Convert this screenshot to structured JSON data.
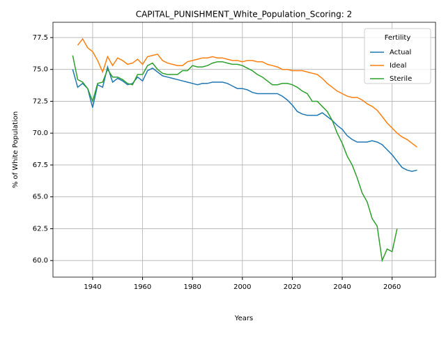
{
  "chart_data": {
    "type": "line",
    "title": "CAPITAL_PUNISHMENT_White_Population_Scoring: 2",
    "xlabel": "Years",
    "ylabel": "% of White Population",
    "legend_title": "Fertility",
    "legend": "upper right",
    "grid": true,
    "x": [
      1932,
      1934,
      1936,
      1938,
      1940,
      1942,
      1944,
      1946,
      1948,
      1950,
      1952,
      1954,
      1956,
      1958,
      1960,
      1962,
      1964,
      1966,
      1968,
      1970,
      1972,
      1974,
      1976,
      1978,
      1980,
      1982,
      1984,
      1986,
      1988,
      1990,
      1992,
      1994,
      1996,
      1998,
      2000,
      2002,
      2004,
      2006,
      2008,
      2010,
      2012,
      2014,
      2016,
      2018,
      2020,
      2022,
      2024,
      2026,
      2028,
      2030,
      2032,
      2034,
      2036,
      2038,
      2040,
      2042,
      2044,
      2046,
      2048,
      2050,
      2052,
      2054,
      2056,
      2058,
      2060,
      2062,
      2064,
      2066,
      2068,
      2070
    ],
    "series": [
      {
        "name": "Actual",
        "color": "#1f77b4",
        "values": [
          75.0,
          73.6,
          73.9,
          73.5,
          72.0,
          73.8,
          73.6,
          75.2,
          74.0,
          74.3,
          74.1,
          73.8,
          73.9,
          74.4,
          74.1,
          74.9,
          75.1,
          74.8,
          74.5,
          74.4,
          74.3,
          74.2,
          74.1,
          74.0,
          73.9,
          73.8,
          73.9,
          73.9,
          74.0,
          74.0,
          74.0,
          73.9,
          73.7,
          73.5,
          73.5,
          73.4,
          73.2,
          73.1,
          73.1,
          73.1,
          73.1,
          73.1,
          72.9,
          72.6,
          72.2,
          71.7,
          71.5,
          71.4,
          71.4,
          71.4,
          71.6,
          71.3,
          71.0,
          70.6,
          70.3,
          69.8,
          69.5,
          69.3,
          69.3,
          69.3,
          69.4,
          69.3,
          69.1,
          68.7,
          68.3,
          67.8,
          67.3,
          67.1,
          67.0,
          67.1
        ]
      },
      {
        "name": "Ideal",
        "color": "#ff7f0e",
        "values": [
          null,
          76.9,
          77.4,
          76.7,
          76.4,
          75.7,
          74.8,
          76.0,
          75.3,
          75.9,
          75.7,
          75.4,
          75.5,
          75.8,
          75.4,
          76.0,
          76.1,
          76.2,
          75.7,
          75.5,
          75.4,
          75.3,
          75.3,
          75.6,
          75.7,
          75.8,
          75.9,
          75.9,
          76.0,
          75.9,
          75.9,
          75.8,
          75.7,
          75.7,
          75.6,
          75.7,
          75.7,
          75.6,
          75.6,
          75.4,
          75.3,
          75.2,
          75.0,
          75.0,
          74.9,
          74.9,
          74.9,
          74.8,
          74.7,
          74.6,
          74.3,
          73.9,
          73.6,
          73.3,
          73.1,
          72.9,
          72.8,
          72.8,
          72.6,
          72.3,
          72.1,
          71.8,
          71.3,
          70.8,
          70.4,
          70.0,
          69.7,
          69.5,
          69.2,
          68.9
        ]
      },
      {
        "name": "Sterile",
        "color": "#2ca02c",
        "values": [
          76.1,
          74.2,
          74.0,
          73.5,
          72.5,
          73.9,
          74.0,
          75.0,
          74.4,
          74.4,
          74.2,
          73.9,
          73.8,
          74.6,
          74.6,
          75.3,
          75.5,
          75.0,
          74.7,
          74.6,
          74.6,
          74.6,
          74.9,
          74.9,
          75.3,
          75.2,
          75.2,
          75.3,
          75.5,
          75.6,
          75.6,
          75.5,
          75.4,
          75.4,
          75.3,
          75.1,
          74.9,
          74.6,
          74.4,
          74.1,
          73.8,
          73.8,
          73.9,
          73.9,
          73.8,
          73.6,
          73.3,
          73.1,
          72.5,
          72.5,
          72.1,
          71.7,
          71.0,
          70.0,
          69.2,
          68.2,
          67.5,
          66.5,
          65.3,
          64.6,
          63.3,
          62.7,
          60.0,
          60.9,
          60.7,
          62.5,
          null,
          null,
          null,
          null
        ]
      }
    ],
    "xlim": [
      1924.1,
      2077.4
    ],
    "xticks": [
      1940,
      1960,
      1980,
      2000,
      2020,
      2040,
      2060
    ],
    "ylim": [
      58.7,
      78.7
    ],
    "yticks": [
      {
        "value": 60,
        "label": "60.0"
      },
      62.5,
      {
        "value": 65,
        "label": "65.0"
      },
      67.5,
      {
        "value": 70,
        "label": "70.0"
      },
      72.5,
      {
        "value": 75,
        "label": "75.0"
      },
      77.5
    ]
  }
}
